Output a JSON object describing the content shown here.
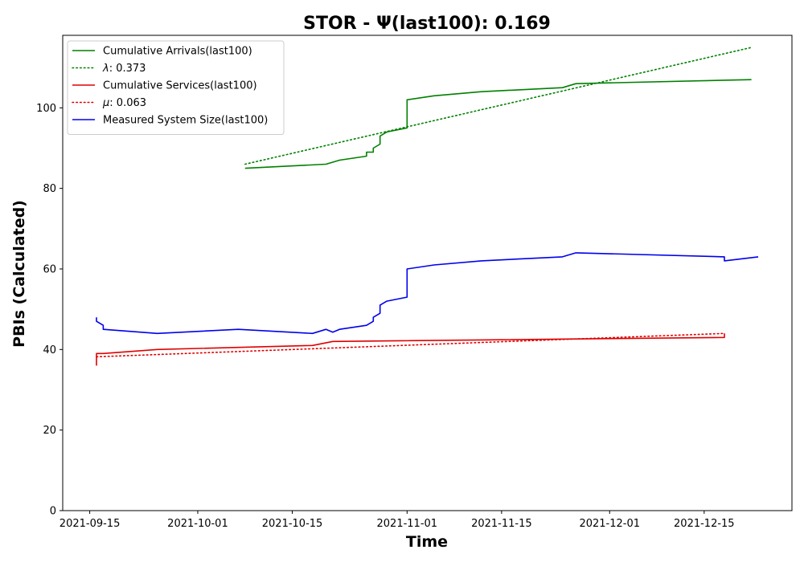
{
  "chart_data": {
    "type": "line",
    "title": "STOR -  Ψ(last100): 0.169",
    "xlabel": "Time",
    "ylabel": "PBIs (Calculated)",
    "x_type": "date",
    "xlim": [
      "2021-09-11",
      "2021-12-28"
    ],
    "ylim": [
      0,
      118
    ],
    "x_ticks": [
      "2021-09-15",
      "2021-10-01",
      "2021-10-15",
      "2021-11-01",
      "2021-11-15",
      "2021-12-01",
      "2021-12-15"
    ],
    "y_ticks": [
      0,
      20,
      40,
      60,
      80,
      100
    ],
    "grid": false,
    "legend": "top-left",
    "series": [
      {
        "name": "Cumulative Arrivals(last100)",
        "color": "#008000",
        "style": "solid",
        "points": [
          [
            "2021-10-08",
            85
          ],
          [
            "2021-10-20",
            86
          ],
          [
            "2021-10-22",
            87
          ],
          [
            "2021-10-26",
            88
          ],
          [
            "2021-10-26",
            89
          ],
          [
            "2021-10-27",
            89
          ],
          [
            "2021-10-27",
            90
          ],
          [
            "2021-10-28",
            91
          ],
          [
            "2021-10-28",
            93
          ],
          [
            "2021-10-29",
            94
          ],
          [
            "2021-11-01",
            95
          ],
          [
            "2021-11-01",
            96
          ],
          [
            "2021-11-01",
            102
          ],
          [
            "2021-11-05",
            103
          ],
          [
            "2021-11-12",
            104
          ],
          [
            "2021-11-24",
            105
          ],
          [
            "2021-11-26",
            106
          ],
          [
            "2021-12-01",
            106.2
          ],
          [
            "2021-12-22",
            107
          ]
        ]
      },
      {
        "name": "λ: 0.373",
        "label_symbol": "λ",
        "label_value": ": 0.373",
        "color": "#008000",
        "style": "dotted",
        "points": [
          [
            "2021-10-08",
            86
          ],
          [
            "2021-12-22",
            115
          ]
        ]
      },
      {
        "name": "Cumulative Services(last100)",
        "color": "#e00000",
        "style": "solid",
        "points": [
          [
            "2021-09-16",
            36
          ],
          [
            "2021-09-16",
            38
          ],
          [
            "2021-09-16",
            39
          ],
          [
            "2021-09-17",
            39
          ],
          [
            "2021-09-25",
            40
          ],
          [
            "2021-10-18",
            41
          ],
          [
            "2021-10-21",
            42
          ],
          [
            "2021-12-18",
            43
          ],
          [
            "2021-12-18",
            44
          ]
        ]
      },
      {
        "name": "μ: 0.063",
        "label_symbol": "μ",
        "label_value": ": 0.063",
        "color": "#e00000",
        "style": "dotted",
        "points": [
          [
            "2021-09-16",
            38.2
          ],
          [
            "2021-12-18",
            44
          ]
        ]
      },
      {
        "name": "Measured System Size(last100)",
        "color": "#0000ee",
        "style": "solid",
        "points": [
          [
            "2021-09-16",
            48
          ],
          [
            "2021-09-16",
            47
          ],
          [
            "2021-09-17",
            46
          ],
          [
            "2021-09-17",
            45
          ],
          [
            "2021-09-25",
            44
          ],
          [
            "2021-10-07",
            45
          ],
          [
            "2021-10-18",
            44
          ],
          [
            "2021-10-20",
            45
          ],
          [
            "2021-10-21",
            44.3
          ],
          [
            "2021-10-22",
            45
          ],
          [
            "2021-10-26",
            46
          ],
          [
            "2021-10-27",
            47
          ],
          [
            "2021-10-27",
            48
          ],
          [
            "2021-10-28",
            49
          ],
          [
            "2021-10-28",
            51
          ],
          [
            "2021-10-29",
            52
          ],
          [
            "2021-11-01",
            53
          ],
          [
            "2021-11-01",
            60
          ],
          [
            "2021-11-05",
            61
          ],
          [
            "2021-11-12",
            62
          ],
          [
            "2021-11-24",
            63
          ],
          [
            "2021-11-26",
            64
          ],
          [
            "2021-12-18",
            63
          ],
          [
            "2021-12-18",
            62
          ],
          [
            "2021-12-23",
            63
          ]
        ]
      }
    ]
  }
}
